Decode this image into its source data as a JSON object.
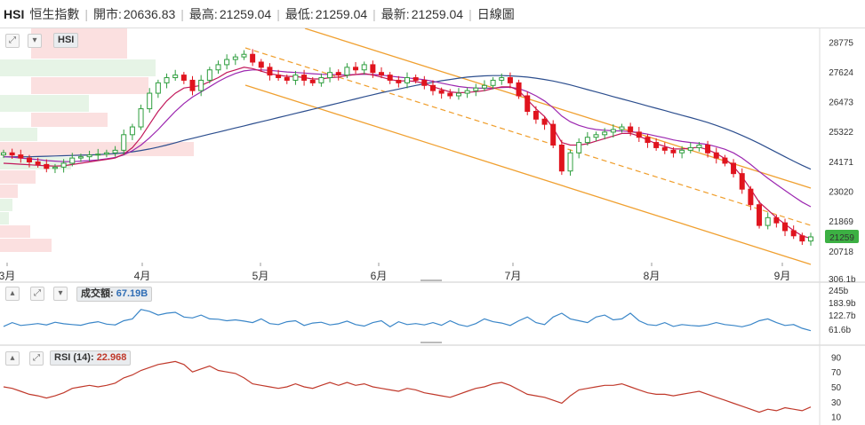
{
  "header": {
    "symbol": "HSI",
    "name": "恒生指數",
    "open_label": "開市:",
    "open": "20636.83",
    "high_label": "最高:",
    "high": "21259.04",
    "low_label": "最低:",
    "low": "21259.04",
    "last_label": "最新:",
    "last": "21259.04",
    "period": "日線圖"
  },
  "toolbar": {
    "main_tag": "HSI",
    "volume_tag": "成交額:",
    "volume_value": "67.19B",
    "rsi_tag": "RSI (14):",
    "rsi_value": "22.968"
  },
  "colors": {
    "up": "#2e9e3e",
    "down": "#e0141e",
    "volume_line": "#3a86c8",
    "rsi_line": "#c0392b",
    "ma_short": "#c2185b",
    "ma_mid": "#9c27b0",
    "ma_long": "#2c4e8e",
    "channel": "#f0a030",
    "last_badge": "#3cb043"
  },
  "chart_data": [
    {
      "type": "candlestick",
      "title": "HSI",
      "x_ticks": [
        "3月",
        "4月",
        "5月",
        "6月",
        "7月",
        "8月",
        "9月"
      ],
      "y_ticks": [
        28775,
        27624,
        26473,
        25322,
        24171,
        23020,
        21869,
        20718
      ],
      "ylim": [
        20300,
        29300
      ],
      "last_price_badge": "21259",
      "series": [
        {
          "name": "close",
          "values": [
            24500,
            24420,
            24300,
            24150,
            24050,
            23900,
            23950,
            24100,
            24300,
            24350,
            24420,
            24450,
            24500,
            24600,
            25200,
            25500,
            26200,
            26800,
            27200,
            27400,
            27500,
            27300,
            26900,
            27300,
            27700,
            27900,
            28100,
            28200,
            28300,
            28000,
            27800,
            27500,
            27400,
            27300,
            27500,
            27300,
            27200,
            27400,
            27600,
            27500,
            27800,
            27700,
            27900,
            27600,
            27500,
            27300,
            27200,
            27400,
            27300,
            27100,
            26900,
            26800,
            26700,
            26800,
            26900,
            27000,
            27100,
            27300,
            27400,
            27200,
            26700,
            26100,
            25800,
            25600,
            24800,
            23800,
            24500,
            24900,
            25100,
            25200,
            25300,
            25400,
            25500,
            25300,
            25100,
            24900,
            24700,
            24600,
            24500,
            24600,
            24700,
            24800,
            24500,
            24300,
            24100,
            23700,
            23100,
            22500,
            21700,
            22000,
            21800,
            21500,
            21300,
            21100,
            21259
          ]
        },
        {
          "name": "ma_short",
          "values": [
            24100,
            24080,
            24060,
            24040,
            24020,
            24000,
            23990,
            24000,
            24050,
            24100,
            24150,
            24200,
            24250,
            24300,
            24450,
            24700,
            25100,
            25600,
            26100,
            26500,
            26800,
            27000,
            27050,
            27100,
            27250,
            27400,
            27600,
            27700,
            27800,
            27750,
            27650,
            27550,
            27500,
            27450,
            27450,
            27400,
            27350,
            27350,
            27400,
            27420,
            27480,
            27520,
            27560,
            27500,
            27420,
            27330,
            27270,
            27280,
            27250,
            27180,
            27050,
            26950,
            26850,
            26820,
            26830,
            26860,
            26900,
            26980,
            27050,
            27050,
            26900,
            26550,
            26200,
            25900,
            25450,
            24900,
            24800,
            24800,
            24850,
            24950,
            25050,
            25150,
            25250,
            25250,
            25150,
            25000,
            24850,
            24750,
            24650,
            24650,
            24680,
            24720,
            24620,
            24480,
            24280,
            23980,
            23580,
            23100,
            22600,
            22300,
            22000,
            21750,
            21500,
            21300,
            21200
          ]
        },
        {
          "name": "ma_mid",
          "values": [
            24350,
            24330,
            24300,
            24270,
            24240,
            24200,
            24180,
            24160,
            24160,
            24180,
            24200,
            24230,
            24270,
            24320,
            24420,
            24580,
            24800,
            25080,
            25400,
            25750,
            26100,
            26400,
            26650,
            26850,
            27050,
            27250,
            27420,
            27560,
            27660,
            27700,
            27700,
            27680,
            27650,
            27620,
            27600,
            27580,
            27550,
            27530,
            27520,
            27510,
            27510,
            27520,
            27530,
            27520,
            27500,
            27460,
            27420,
            27390,
            27360,
            27320,
            27260,
            27190,
            27120,
            27060,
            27020,
            27000,
            26990,
            27000,
            27020,
            27030,
            26980,
            26860,
            26700,
            26500,
            26240,
            25920,
            25700,
            25560,
            25460,
            25400,
            25370,
            25350,
            25340,
            25320,
            25280,
            25220,
            25150,
            25080,
            25000,
            24940,
            24900,
            24870,
            24820,
            24740,
            24640,
            24500,
            24300,
            24050,
            23780,
            23520,
            23280,
            23050,
            22820,
            22600,
            22420
          ]
        },
        {
          "name": "ma_long",
          "values": [
            24350,
            24350,
            24350,
            24350,
            24360,
            24370,
            24380,
            24390,
            24400,
            24410,
            24420,
            24430,
            24450,
            24470,
            24500,
            24540,
            24590,
            24650,
            24720,
            24800,
            24890,
            24980,
            25060,
            25140,
            25220,
            25300,
            25380,
            25460,
            25540,
            25620,
            25700,
            25780,
            25860,
            25940,
            26020,
            26100,
            26180,
            26260,
            26340,
            26420,
            26500,
            26580,
            26660,
            26740,
            26820,
            26890,
            26960,
            27030,
            27100,
            27160,
            27220,
            27280,
            27330,
            27380,
            27420,
            27450,
            27470,
            27480,
            27480,
            27470,
            27450,
            27420,
            27380,
            27330,
            27270,
            27200,
            27120,
            27030,
            26940,
            26850,
            26760,
            26670,
            26580,
            26490,
            26400,
            26310,
            26220,
            26130,
            26040,
            25950,
            25860,
            25770,
            25670,
            25560,
            25440,
            25310,
            25170,
            25020,
            24860,
            24690,
            24520,
            24350,
            24180,
            24020,
            23870
          ]
        }
      ]
    },
    {
      "type": "line",
      "title": "成交額",
      "y_ticks": [
        "306.1b",
        "245b",
        "183.9b",
        "122.7b",
        "61.6b"
      ],
      "ylim": [
        0,
        306.1
      ],
      "series": [
        {
          "name": "成交額",
          "values": [
            90,
            110,
            95,
            100,
            105,
            98,
            112,
            104,
            100,
            96,
            108,
            115,
            102,
            98,
            120,
            130,
            180,
            170,
            150,
            160,
            165,
            140,
            135,
            150,
            130,
            128,
            120,
            125,
            118,
            110,
            130,
            105,
            100,
            115,
            120,
            95,
            108,
            112,
            98,
            104,
            118,
            100,
            92,
            110,
            120,
            88,
            115,
            100,
            105,
            98,
            110,
            96,
            120,
            100,
            90,
            105,
            130,
            115,
            108,
            95,
            120,
            140,
            110,
            100,
            140,
            160,
            130,
            120,
            110,
            140,
            150,
            125,
            130,
            160,
            120,
            100,
            95,
            110,
            90,
            100,
            95,
            92,
            98,
            110,
            100,
            95,
            88,
            100,
            120,
            130,
            110,
            95,
            100,
            80,
            67.19
          ]
        }
      ]
    },
    {
      "type": "line",
      "title": "RSI (14)",
      "y_ticks": [
        90,
        70,
        50,
        30,
        10
      ],
      "ylim": [
        0,
        100
      ],
      "series": [
        {
          "name": "RSI (14)",
          "values": [
            50,
            48,
            44,
            40,
            38,
            35,
            38,
            42,
            48,
            50,
            52,
            50,
            52,
            55,
            62,
            66,
            72,
            76,
            80,
            82,
            84,
            80,
            70,
            74,
            78,
            72,
            70,
            68,
            62,
            54,
            52,
            50,
            48,
            50,
            54,
            50,
            48,
            52,
            56,
            52,
            56,
            52,
            54,
            50,
            48,
            46,
            44,
            48,
            46,
            42,
            40,
            38,
            36,
            40,
            44,
            48,
            50,
            54,
            56,
            52,
            46,
            40,
            38,
            36,
            32,
            28,
            38,
            46,
            48,
            50,
            52,
            52,
            54,
            50,
            46,
            42,
            40,
            40,
            38,
            40,
            42,
            44,
            40,
            36,
            32,
            28,
            24,
            20,
            16,
            20,
            18,
            22,
            20,
            18,
            22.968
          ]
        }
      ]
    }
  ]
}
